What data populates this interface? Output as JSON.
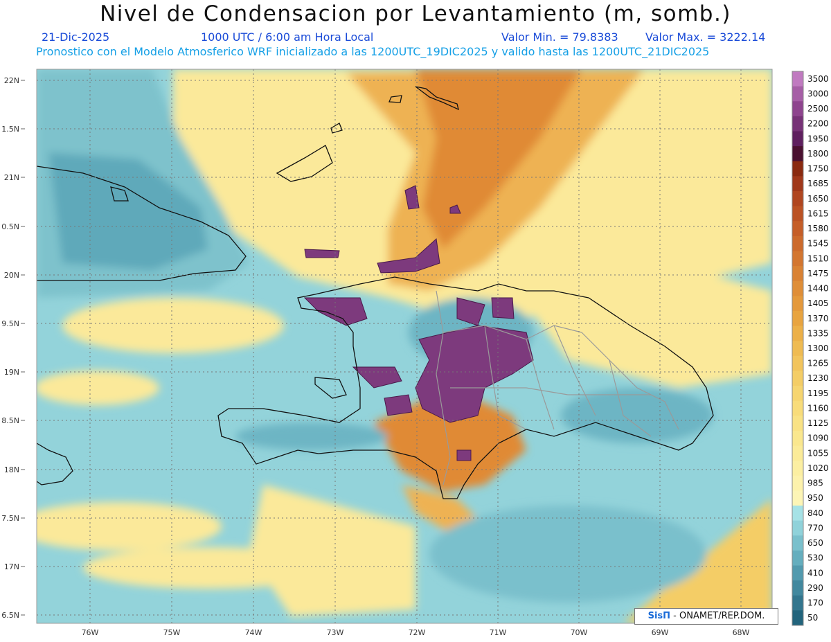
{
  "header": {
    "title": "Nivel de Condensacion por Levantamiento (m, somb.)",
    "date": "21-Dic-2025",
    "time": "1000 UTC / 6:00 am Hora Local",
    "valmin": "Valor Min. = 79.8383",
    "valmax": "Valor Max. = 3222.14",
    "forecast": "Pronostico con el Modelo Atmosferico WRF inicializado a las 1200UTC_19DIC2025 y valido hasta las  1200UTC_21DIC2025"
  },
  "axes": {
    "lat_labels": [
      "22N",
      "1.5N",
      "21N",
      "0.5N",
      "20N",
      "9.5N",
      "19N",
      "8.5N",
      "18N",
      "7.5N",
      "17N",
      "6.5N"
    ],
    "lon_labels": [
      "76W",
      "75W",
      "74W",
      "73W",
      "72W",
      "71W",
      "70W",
      "69W",
      "68W"
    ]
  },
  "colorbar": {
    "levels": [
      "3500",
      "3000",
      "2500",
      "2200",
      "1950",
      "1800",
      "1750",
      "1685",
      "1650",
      "1615",
      "1580",
      "1545",
      "1510",
      "1475",
      "1440",
      "1405",
      "1370",
      "1335",
      "1300",
      "1265",
      "1230",
      "1195",
      "1160",
      "1125",
      "1090",
      "1055",
      "1020",
      "985",
      "950",
      "840",
      "770",
      "650",
      "530",
      "410",
      "290",
      "170",
      "50"
    ],
    "colors": [
      "#c07ac0",
      "#a65ea6",
      "#8e448e",
      "#773277",
      "#5f1f5f",
      "#4a1030",
      "#8a2a10",
      "#a0381a",
      "#b04620",
      "#bb5224",
      "#c55e28",
      "#cc6a2c",
      "#d37630",
      "#d98234",
      "#df8e38",
      "#e4993c",
      "#e8a440",
      "#ecb048",
      "#efbb52",
      "#f2c45c",
      "#f4cd66",
      "#f6d570",
      "#f8dc7a",
      "#f9e284",
      "#fae78e",
      "#fbeb98",
      "#fcefa2",
      "#fdf2ac",
      "#fdf5b6",
      "#a6e2e6",
      "#90d2da",
      "#7ac0cc",
      "#65aebe",
      "#529aae",
      "#42889e",
      "#33768e",
      "#22647c"
    ]
  },
  "credit": {
    "logo": "SisΠ",
    "text": " - ONAMET/REP.DOM."
  }
}
